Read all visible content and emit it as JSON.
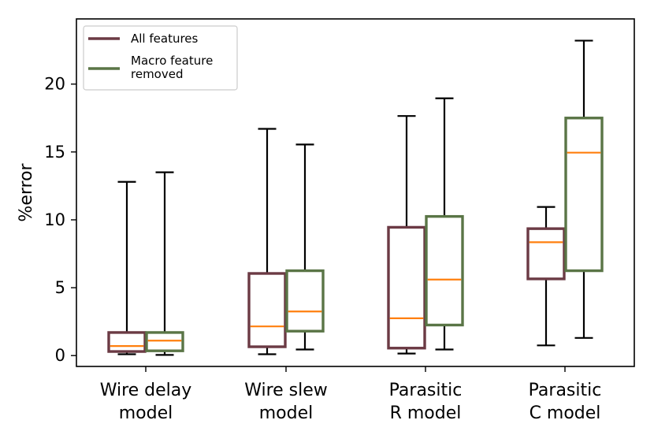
{
  "chart_data": {
    "type": "boxplot",
    "title": "",
    "xlabel": "",
    "ylabel": "%error",
    "ylim": [
      -0.8,
      24.8
    ],
    "yticks": [
      0,
      5,
      10,
      15,
      20
    ],
    "categories": [
      [
        "Wire delay",
        "model"
      ],
      [
        "Wire slew",
        "model"
      ],
      [
        "Parasitic",
        "R model"
      ],
      [
        "Parasitic",
        "C model"
      ]
    ],
    "legend_position": "top-left",
    "series": [
      {
        "name": "All features",
        "color": "#6b3a44",
        "boxes": [
          {
            "whislo": 0.1,
            "q1": 0.3,
            "med": 0.7,
            "q3": 1.7,
            "whishi": 12.8
          },
          {
            "whislo": 0.1,
            "q1": 0.65,
            "med": 2.15,
            "q3": 6.05,
            "whishi": 16.7
          },
          {
            "whislo": 0.15,
            "q1": 0.55,
            "med": 2.75,
            "q3": 9.45,
            "whishi": 17.65
          },
          {
            "whislo": 0.75,
            "q1": 5.65,
            "med": 8.35,
            "q3": 9.35,
            "whishi": 10.95
          }
        ]
      },
      {
        "name": "Macro feature\nremoved",
        "color": "#5a7546",
        "boxes": [
          {
            "whislo": 0.05,
            "q1": 0.35,
            "med": 1.1,
            "q3": 1.7,
            "whishi": 13.5
          },
          {
            "whislo": 0.45,
            "q1": 1.8,
            "med": 3.25,
            "q3": 6.25,
            "whishi": 15.55
          },
          {
            "whislo": 0.45,
            "q1": 2.25,
            "med": 5.6,
            "q3": 10.25,
            "whishi": 18.95
          },
          {
            "whislo": 1.3,
            "q1": 6.25,
            "med": 14.95,
            "q3": 17.5,
            "whishi": 23.2
          }
        ]
      }
    ],
    "median_color": "#ff7f0e"
  }
}
